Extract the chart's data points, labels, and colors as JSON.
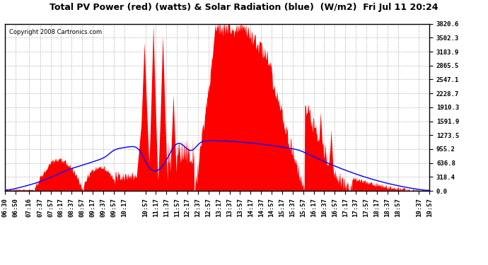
{
  "title": "Total PV Power (red) (watts) & Solar Radiation (blue)  (W/m2)  Fri Jul 11 20:24",
  "copyright": "Copyright 2008 Cartronics.com",
  "background_color": "#ffffff",
  "plot_bg_color": "#ffffff",
  "grid_color": "#bbbbbb",
  "pv_color": "red",
  "solar_color": "blue",
  "y_max": 3820.6,
  "y_min": 0.0,
  "y_ticks": [
    0.0,
    318.4,
    636.8,
    955.2,
    1273.5,
    1591.9,
    1910.3,
    2228.7,
    2547.1,
    2865.5,
    3183.9,
    3502.3,
    3820.6
  ],
  "title_fontsize": 9,
  "copyright_fontsize": 6,
  "tick_fontsize": 6.5
}
